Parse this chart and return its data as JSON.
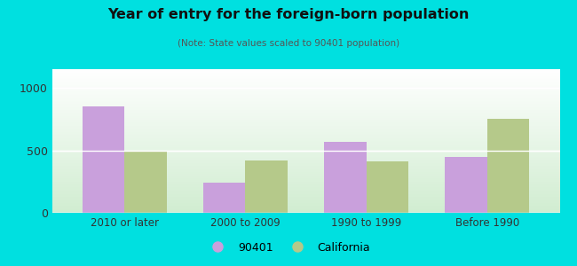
{
  "title": "Year of entry for the foreign-born population",
  "subtitle": "(Note: State values scaled to 90401 population)",
  "categories": [
    "2010 or later",
    "2000 to 2009",
    "1990 to 1999",
    "Before 1990"
  ],
  "values_90401": [
    855,
    240,
    565,
    445
  ],
  "values_california": [
    495,
    420,
    415,
    750
  ],
  "color_90401": "#c9a0dc",
  "color_california": "#b5c98a",
  "background_outer": "#00e0e0",
  "background_inner_top": "#f5faf5",
  "background_inner_bottom": "#d0e8d0",
  "ylim": [
    0,
    1150
  ],
  "yticks": [
    0,
    500,
    1000
  ],
  "bar_width": 0.35,
  "legend_90401": "90401",
  "legend_california": "California",
  "title_color": "#111111",
  "subtitle_color": "#555555"
}
